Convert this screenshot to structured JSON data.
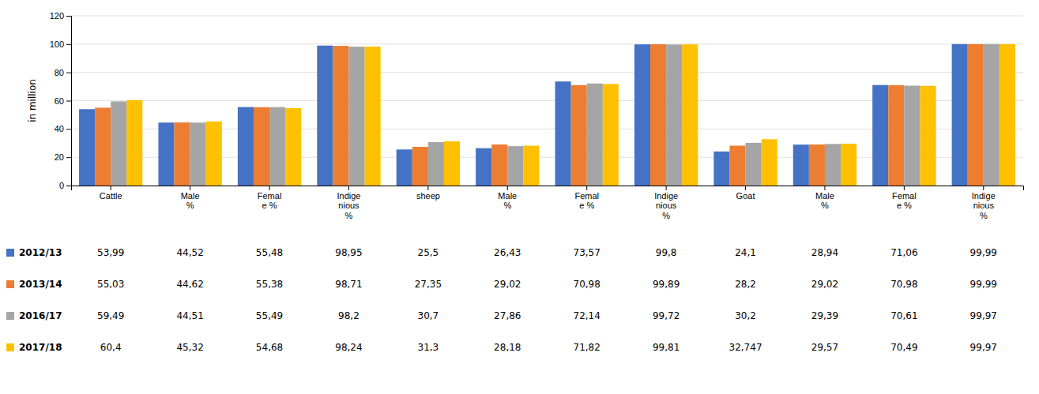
{
  "chart_data": {
    "type": "bar",
    "categories": [
      "Cattle",
      "Male\n%",
      "Femal\ne %",
      "Indige\nnious\n%",
      "sheep",
      "Male\n%",
      "Femal\ne %",
      "Indige\nnious\n%",
      "Goat",
      "Male\n%",
      "Femal\ne %",
      "Indige\nnious\n%"
    ],
    "series": [
      {
        "name": "2012/13",
        "color": "#4472C4",
        "values": [
          53.99,
          44.52,
          55.48,
          98.95,
          25.5,
          26.43,
          73.57,
          99.8,
          24.1,
          28.94,
          71.06,
          99.99
        ],
        "value_labels": [
          "53,99",
          "44,52",
          "55,48",
          "98,95",
          "25,5",
          "26,43",
          "73,57",
          "99,8",
          "24,1",
          "28,94",
          "71,06",
          "99,99"
        ]
      },
      {
        "name": "2013/14",
        "color": "#ED7D31",
        "values": [
          55.03,
          44.62,
          55.38,
          98.71,
          27.35,
          29.02,
          70.98,
          99.89,
          28.2,
          29.02,
          70.98,
          99.99
        ],
        "value_labels": [
          "55,03",
          "44,62",
          "55,38",
          "98,71",
          "27,35",
          "29,02",
          "70,98",
          "99,89",
          "28,2",
          "29,02",
          "70,98",
          "99,99"
        ]
      },
      {
        "name": "2016/17",
        "color": "#A5A5A5",
        "values": [
          59.49,
          44.51,
          55.49,
          98.2,
          30.7,
          27.86,
          72.14,
          99.72,
          30.2,
          29.39,
          70.61,
          99.97
        ],
        "value_labels": [
          "59,49",
          "44,51",
          "55,49",
          "98,2",
          "30,7",
          "27,86",
          "72,14",
          "99,72",
          "30,2",
          "29,39",
          "70,61",
          "99,97"
        ]
      },
      {
        "name": "2017/18",
        "color": "#FFC000",
        "values": [
          60.4,
          45.32,
          54.68,
          98.24,
          31.3,
          28.18,
          71.82,
          99.81,
          32.747,
          29.57,
          70.49,
          99.97
        ],
        "value_labels": [
          "60,4",
          "45,32",
          "54,68",
          "98,24",
          "31,3",
          "28,18",
          "71,82",
          "99,81",
          "32,747",
          "29,57",
          "70,49",
          "99,97"
        ]
      }
    ],
    "ylabel": "in million",
    "ylim": [
      0,
      120
    ],
    "yticks": [
      0,
      20,
      40,
      60,
      80,
      100,
      120
    ],
    "grid": true,
    "legend": "bottom"
  }
}
